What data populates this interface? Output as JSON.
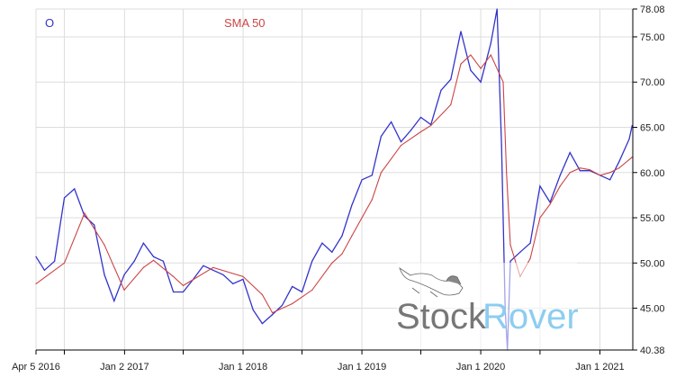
{
  "legend": {
    "price_marker": "O",
    "sma_label": "SMA 50"
  },
  "watermark": {
    "part1": "Stock",
    "part2": "Rover"
  },
  "colors": {
    "price": "#3333cc",
    "sma": "#cc4444",
    "grid": "#dddddd",
    "watermark_gray": "#777777",
    "watermark_blue": "#8dcdf0"
  },
  "chart_data": {
    "type": "line",
    "title": "",
    "xlabel": "",
    "ylabel": "",
    "ylim": [
      40.38,
      78.08
    ],
    "xlim": [
      "2016-04-05",
      "2021-04-12"
    ],
    "grid": true,
    "legend_position": "top-left",
    "y_axis_side": "right",
    "y_ticks": [
      "78.08",
      "75.00",
      "70.00",
      "65.00",
      "60.00",
      "55.00",
      "50.00",
      "45.00",
      "40.38"
    ],
    "x_ticks": [
      {
        "date": "2016-04-05",
        "label": "Apr 5 2016"
      },
      {
        "date": "2016-07-01",
        "label": ""
      },
      {
        "date": "2017-01-02",
        "label": "Jan 2 2017"
      },
      {
        "date": "2017-07-01",
        "label": ""
      },
      {
        "date": "2018-01-01",
        "label": "Jan 1 2018"
      },
      {
        "date": "2018-07-01",
        "label": ""
      },
      {
        "date": "2019-01-01",
        "label": "Jan 1 2019"
      },
      {
        "date": "2019-07-01",
        "label": ""
      },
      {
        "date": "2020-01-01",
        "label": "Jan 1 2020"
      },
      {
        "date": "2020-07-01",
        "label": ""
      },
      {
        "date": "2021-01-01",
        "label": "Jan 1 2021"
      }
    ],
    "series": [
      {
        "key": "price",
        "x": [
          "2016-04-05",
          "2016-05-01",
          "2016-06-01",
          "2016-07-01",
          "2016-08-01",
          "2016-09-01",
          "2016-10-01",
          "2016-11-01",
          "2016-12-01",
          "2017-01-01",
          "2017-02-01",
          "2017-03-01",
          "2017-04-01",
          "2017-05-01",
          "2017-06-01",
          "2017-07-01",
          "2017-08-01",
          "2017-09-01",
          "2017-10-01",
          "2017-11-01",
          "2017-12-01",
          "2018-01-01",
          "2018-02-01",
          "2018-03-01",
          "2018-04-01",
          "2018-05-01",
          "2018-06-01",
          "2018-07-01",
          "2018-08-01",
          "2018-09-01",
          "2018-10-01",
          "2018-11-01",
          "2018-12-01",
          "2019-01-01",
          "2019-02-01",
          "2019-03-01",
          "2019-04-01",
          "2019-05-01",
          "2019-06-01",
          "2019-07-01",
          "2019-08-01",
          "2019-09-01",
          "2019-10-01",
          "2019-11-01",
          "2019-12-01",
          "2020-01-01",
          "2020-02-01",
          "2020-02-20",
          "2020-03-05",
          "2020-03-16",
          "2020-03-23",
          "2020-04-01",
          "2020-05-01",
          "2020-06-01",
          "2020-07-01",
          "2020-08-01",
          "2020-09-01",
          "2020-10-01",
          "2020-11-01",
          "2020-12-01",
          "2021-01-01",
          "2021-02-01",
          "2021-03-01",
          "2021-04-01",
          "2021-04-10"
        ],
        "values": [
          50.7,
          49.2,
          50.2,
          57.2,
          58.2,
          55.2,
          54.2,
          48.7,
          45.8,
          48.7,
          50.2,
          52.2,
          50.7,
          50.2,
          46.8,
          46.8,
          48.2,
          49.7,
          49.2,
          48.7,
          47.7,
          48.2,
          44.8,
          43.3,
          44.3,
          45.3,
          47.4,
          46.8,
          50.2,
          52.2,
          51.2,
          53.0,
          56.4,
          59.2,
          59.7,
          64.0,
          65.6,
          63.4,
          64.7,
          66.1,
          65.3,
          69.1,
          70.3,
          75.6,
          71.3,
          70.0,
          74.3,
          78.08,
          63.0,
          45.0,
          40.38,
          50.2,
          51.2,
          52.2,
          58.5,
          56.7,
          59.7,
          62.2,
          60.2,
          60.2,
          59.7,
          59.2,
          61.2,
          63.7,
          65.2
        ]
      },
      {
        "key": "sma",
        "name": "SMA 50",
        "x": [
          "2016-04-05",
          "2016-07-01",
          "2016-09-01",
          "2016-11-01",
          "2017-01-01",
          "2017-03-01",
          "2017-04-01",
          "2017-06-01",
          "2017-07-01",
          "2017-10-01",
          "2018-01-01",
          "2018-03-01",
          "2018-04-01",
          "2018-06-01",
          "2018-08-01",
          "2018-10-01",
          "2018-11-01",
          "2018-12-01",
          "2019-02-01",
          "2019-03-01",
          "2019-05-01",
          "2019-07-01",
          "2019-08-01",
          "2019-10-01",
          "2019-11-01",
          "2019-12-01",
          "2020-01-01",
          "2020-02-01",
          "2020-03-10",
          "2020-03-20",
          "2020-04-01",
          "2020-05-01",
          "2020-06-01",
          "2020-07-01",
          "2020-08-01",
          "2020-09-01",
          "2020-10-01",
          "2020-11-01",
          "2020-12-01",
          "2021-01-01",
          "2021-02-01",
          "2021-03-01",
          "2021-04-10"
        ],
        "values": [
          47.7,
          50.0,
          55.5,
          52.0,
          47.0,
          49.5,
          50.3,
          48.5,
          47.5,
          49.5,
          48.5,
          46.5,
          44.5,
          45.5,
          47.0,
          50.0,
          51.0,
          53.0,
          57.0,
          60.0,
          63.0,
          64.5,
          65.2,
          67.5,
          72.0,
          73.0,
          71.5,
          73.0,
          70.0,
          60.0,
          52.0,
          48.5,
          50.5,
          55.0,
          56.5,
          58.5,
          60.0,
          60.5,
          60.3,
          59.7,
          60.0,
          60.5,
          61.7
        ]
      }
    ]
  }
}
